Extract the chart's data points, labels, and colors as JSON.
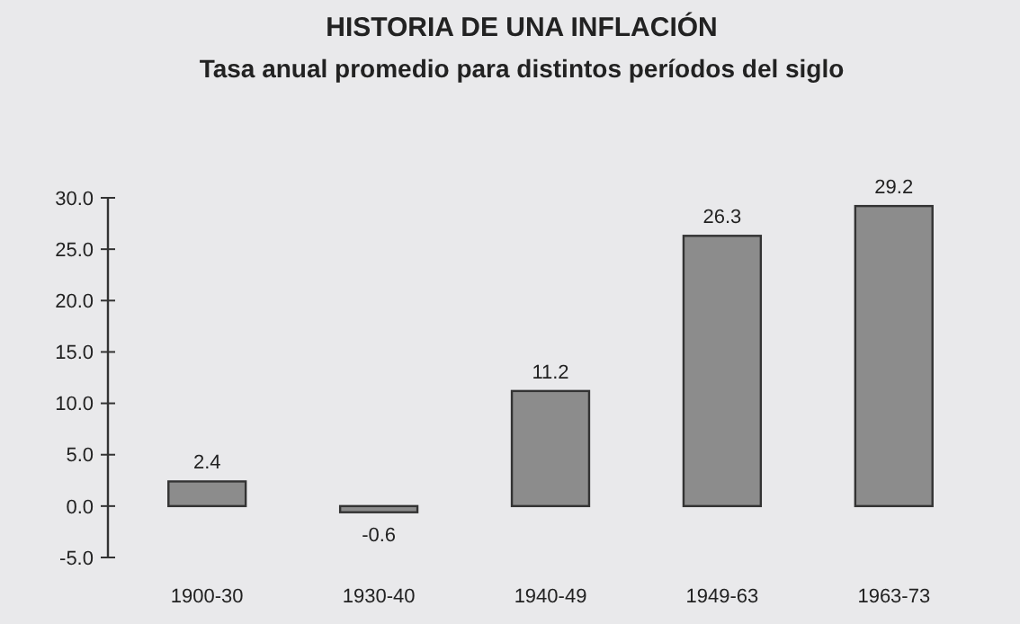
{
  "chart_data": {
    "type": "bar",
    "title": "HISTORIA DE UNA INFLACIÓN",
    "subtitle": "Tasa anual promedio para distintos períodos del siglo",
    "categories": [
      "1900-30",
      "1930-40",
      "1940-49",
      "1949-63",
      "1963-73"
    ],
    "values": [
      2.4,
      -0.6,
      11.2,
      26.3,
      29.2
    ],
    "color": "#8c8c8c",
    "ylim": [
      -5,
      30
    ],
    "yticks": [
      {
        "value": -5,
        "label": "-5.0"
      },
      {
        "value": 0,
        "label": "0.0"
      },
      {
        "value": 5,
        "label": "5.0"
      },
      {
        "value": 10,
        "label": "10.0"
      },
      {
        "value": 15,
        "label": "15.0"
      },
      {
        "value": 20,
        "label": "20.0"
      },
      {
        "value": 25,
        "label": "25.0"
      },
      {
        "value": 30,
        "label": "30.0"
      }
    ],
    "data_labels": true,
    "grid": false
  }
}
